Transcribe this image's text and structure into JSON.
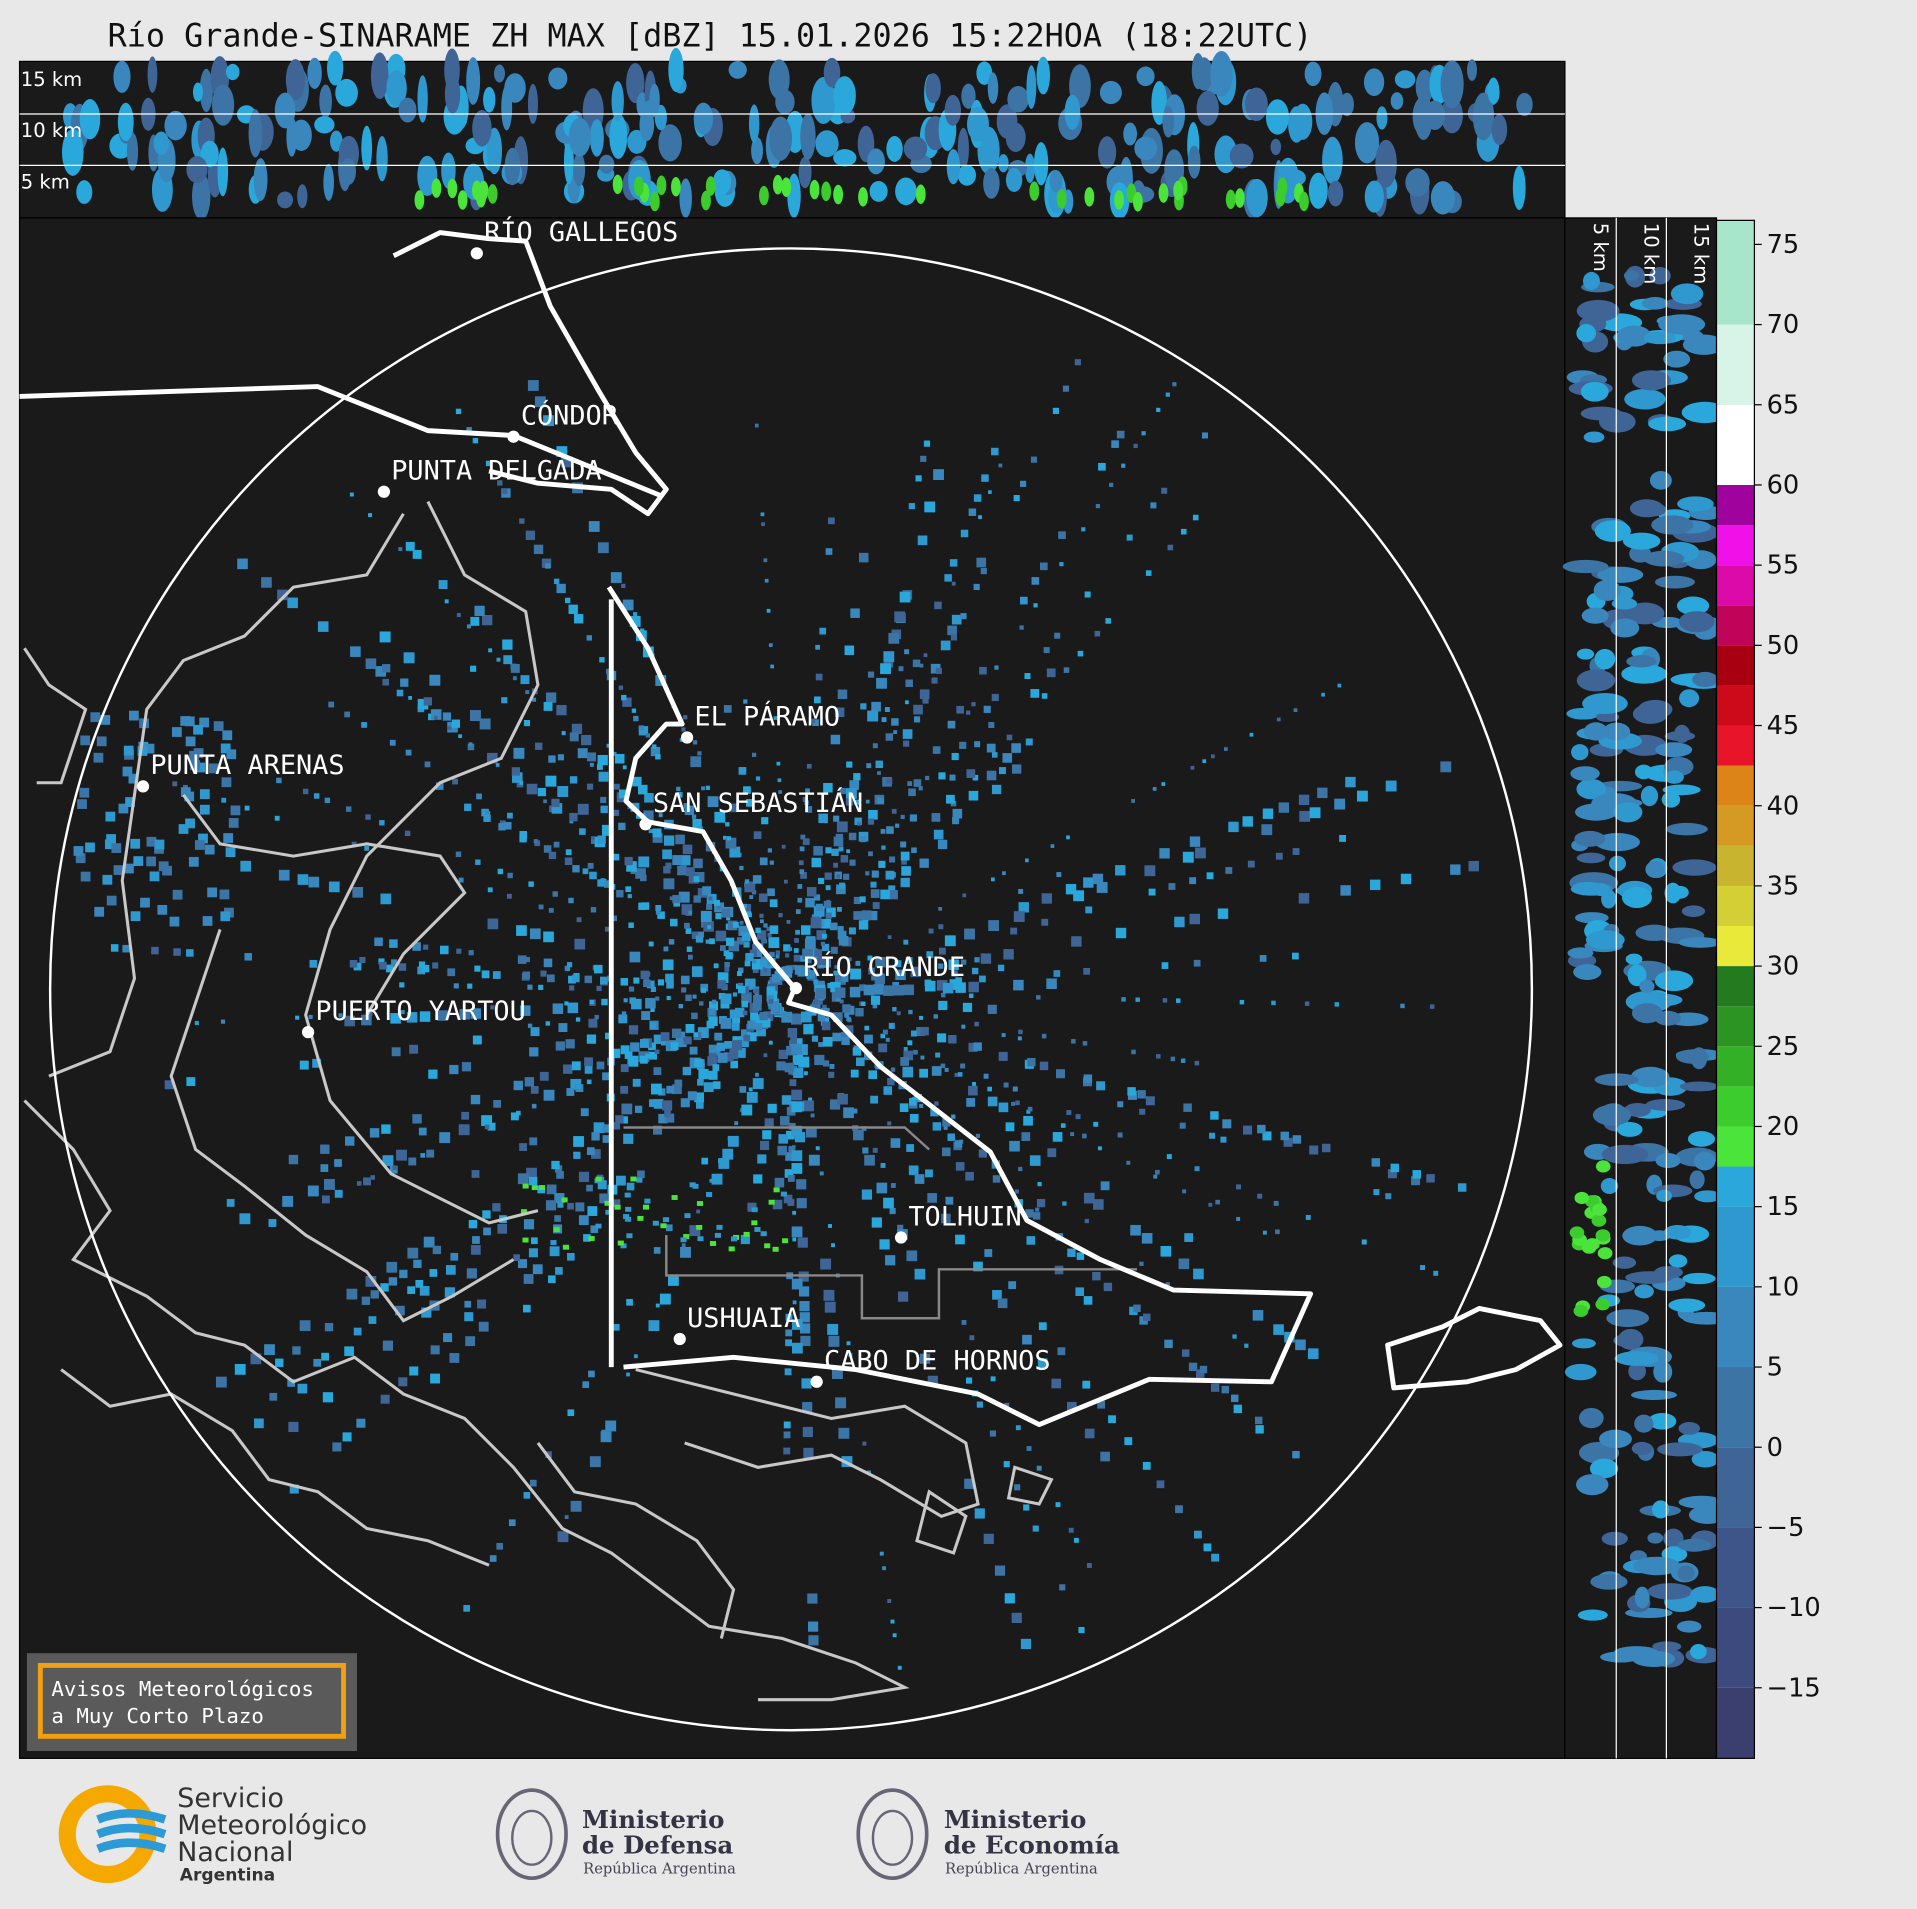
{
  "title": "Río Grande-SINARAME ZH MAX [dBZ] 15.01.2026 15:22HOA (18:22UTC)",
  "profile_top": {
    "labels": [
      "15 km",
      "10 km",
      "5 km"
    ]
  },
  "profile_right": {
    "labels": [
      "5 km",
      "10 km",
      "15 km"
    ]
  },
  "cities": [
    {
      "name": "RÍO GALLEGOS"
    },
    {
      "name": "CÓNDOR"
    },
    {
      "name": "PUNTA DELGADA"
    },
    {
      "name": "EL PÁRAMO"
    },
    {
      "name": "PUNTA ARENAS"
    },
    {
      "name": "SAN SEBASTIÁN"
    },
    {
      "name": "RÍO GRANDE"
    },
    {
      "name": "PUERTO YARTOU"
    },
    {
      "name": "TOLHUIN"
    },
    {
      "name": "USHUAIA"
    },
    {
      "name": "CABO DE HORNOS"
    }
  ],
  "colorbar": {
    "lim": [
      -19.4,
      76.5
    ],
    "ticks": [
      75,
      70,
      65,
      60,
      55,
      50,
      45,
      40,
      35,
      30,
      25,
      20,
      15,
      10,
      5,
      0,
      {
        "value": -5,
        "label": "−5"
      },
      {
        "value": -10,
        "label": "−10"
      },
      {
        "value": -15,
        "label": "−15"
      }
    ],
    "levels": [
      -19.4,
      -15,
      -10,
      -5,
      0,
      5,
      10,
      15,
      17.5,
      20,
      22.5,
      25,
      27.5,
      30,
      32.5,
      35,
      37.5,
      40,
      42.5,
      45,
      47.5,
      50,
      52.5,
      55,
      57.5,
      60,
      65,
      70,
      76.5
    ],
    "colors": [
      "#3a3f6e",
      "#3d4a7e",
      "#3e5589",
      "#3f6496",
      "#3c74a6",
      "#3987bd",
      "#2f98cf",
      "#2aa8dc",
      "#4be43a",
      "#3ccc2e",
      "#34b027",
      "#2c9422",
      "#247a1e",
      "#e9e93a",
      "#d4cf34",
      "#c8b42e",
      "#d49a24",
      "#dc8418",
      "#e8152a",
      "#cc0a1a",
      "#a80010",
      "#c0045a",
      "#dc0aa8",
      "#f010e8",
      "#a0029e",
      "#ffffff",
      "#d8f4e8",
      "#a8e6cc",
      "#8adcbc"
    ]
  },
  "notice": {
    "lines": [
      "Avisos Meteorológicos",
      "a Muy Corto Plazo"
    ]
  },
  "logos": [
    {
      "lines": [
        "Servicio",
        "Meteorológico",
        "Nacional",
        "Argentina"
      ]
    },
    {
      "lines": [
        "Ministerio",
        "de Defensa",
        "República Argentina"
      ]
    },
    {
      "lines": [
        "Ministerio",
        "de Economía",
        "República Argentina"
      ]
    }
  ]
}
